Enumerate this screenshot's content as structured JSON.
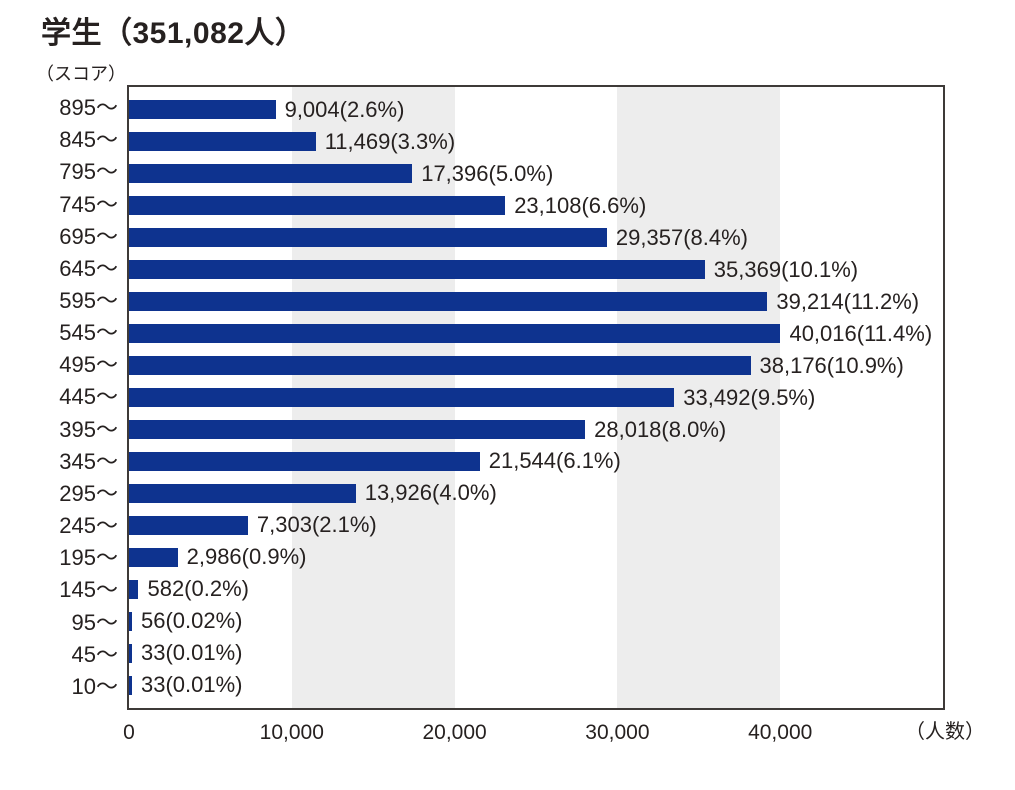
{
  "chart_data": {
    "type": "bar",
    "orientation": "horizontal",
    "title": "学生（351,082人）",
    "total_people": 351082,
    "y_axis_unit": "（スコア）",
    "x_axis_unit": "（人数）",
    "categories": [
      "895～",
      "845～",
      "795～",
      "745～",
      "695～",
      "645～",
      "595～",
      "545～",
      "495～",
      "445～",
      "395～",
      "345～",
      "295～",
      "245～",
      "195～",
      "145～",
      "95～",
      "45～",
      "10～"
    ],
    "values": [
      9004,
      11469,
      17396,
      23108,
      29357,
      35369,
      39214,
      40016,
      38176,
      33492,
      28018,
      21544,
      13926,
      7303,
      2986,
      582,
      56,
      33,
      33
    ],
    "percentages": [
      2.6,
      3.3,
      5.0,
      6.6,
      8.4,
      10.1,
      11.2,
      11.4,
      10.9,
      9.5,
      8.0,
      6.1,
      4.0,
      2.1,
      0.9,
      0.2,
      0.02,
      0.01,
      0.01
    ],
    "value_labels": [
      "9,004(2.6%)",
      "11,469(3.3%)",
      "17,396(5.0%)",
      "23,108(6.6%)",
      "29,357(8.4%)",
      "35,369(10.1%)",
      "39,214(11.2%)",
      "40,016(11.4%)",
      "38,176(10.9%)",
      "33,492(9.5%)",
      "28,018(8.0%)",
      "21,544(6.1%)",
      "13,926(4.0%)",
      "7,303(2.1%)",
      "2,986(0.9%)",
      "582(0.2%)",
      "56(0.02%)",
      "33(0.01%)",
      "33(0.01%)"
    ],
    "xlim": [
      0,
      50000
    ],
    "x_ticks": [
      {
        "value": 0,
        "label": "0"
      },
      {
        "value": 10000,
        "label": "10,000"
      },
      {
        "value": 20000,
        "label": "20,000"
      },
      {
        "value": 30000,
        "label": "30,000"
      },
      {
        "value": 40000,
        "label": "40,000"
      }
    ],
    "background_bands": [
      {
        "from": 10000,
        "to": 20000
      },
      {
        "from": 30000,
        "to": 40000
      }
    ],
    "grid": "off",
    "legend": "none",
    "colors": {
      "bar": "#0e338f",
      "band": "#ededed",
      "border": "#3e3a38",
      "text": "#262120",
      "background": "#ffffff"
    }
  }
}
